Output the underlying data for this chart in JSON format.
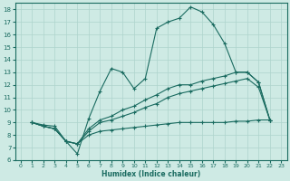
{
  "xlabel": "Humidex (Indice chaleur)",
  "bg_color": "#ceeae4",
  "grid_color": "#aed4cc",
  "line_color": "#1a6b60",
  "xlim": [
    -0.5,
    23.5
  ],
  "ylim": [
    6,
    18.5
  ],
  "xticks": [
    0,
    1,
    2,
    3,
    4,
    5,
    6,
    7,
    8,
    9,
    10,
    11,
    12,
    13,
    14,
    15,
    16,
    17,
    18,
    19,
    20,
    21,
    22,
    23
  ],
  "yticks": [
    6,
    7,
    8,
    9,
    10,
    11,
    12,
    13,
    14,
    15,
    16,
    17,
    18
  ],
  "curve1_x": [
    1,
    2,
    3,
    4,
    5,
    6,
    7,
    8,
    9,
    10,
    11,
    12,
    13,
    14,
    15,
    16,
    17,
    18,
    19,
    20,
    21,
    22
  ],
  "curve1_y": [
    9.0,
    8.8,
    8.7,
    7.5,
    6.5,
    9.3,
    11.5,
    13.3,
    13.0,
    11.7,
    12.5,
    16.5,
    17.0,
    17.3,
    18.2,
    17.8,
    16.8,
    15.3,
    13.0,
    13.0,
    12.2,
    9.2
  ],
  "curve2_x": [
    1,
    2,
    3,
    4,
    5,
    6,
    7,
    8,
    9,
    10,
    11,
    12,
    13,
    14,
    15,
    16,
    17,
    18,
    19,
    20,
    21,
    22
  ],
  "curve2_y": [
    9.0,
    8.7,
    8.5,
    7.5,
    7.3,
    8.5,
    9.2,
    9.5,
    10.0,
    10.3,
    10.8,
    11.2,
    11.7,
    12.0,
    12.0,
    12.3,
    12.5,
    12.7,
    13.0,
    13.0,
    12.2,
    9.2
  ],
  "curve3_x": [
    1,
    2,
    3,
    4,
    5,
    6,
    7,
    8,
    9,
    10,
    11,
    12,
    13,
    14,
    15,
    16,
    17,
    18,
    19,
    20,
    21,
    22
  ],
  "curve3_y": [
    9.0,
    8.7,
    8.5,
    7.5,
    7.3,
    8.3,
    9.0,
    9.2,
    9.5,
    9.8,
    10.2,
    10.5,
    11.0,
    11.3,
    11.5,
    11.7,
    11.9,
    12.1,
    12.3,
    12.5,
    11.8,
    9.2
  ],
  "curve4_x": [
    1,
    2,
    3,
    4,
    5,
    6,
    7,
    8,
    9,
    10,
    11,
    12,
    13,
    14,
    15,
    16,
    17,
    18,
    19,
    20,
    21,
    22
  ],
  "curve4_y": [
    9.0,
    8.7,
    8.5,
    7.5,
    7.3,
    8.0,
    8.3,
    8.4,
    8.5,
    8.6,
    8.7,
    8.8,
    8.9,
    9.0,
    9.0,
    9.0,
    9.0,
    9.0,
    9.1,
    9.1,
    9.2,
    9.2
  ]
}
